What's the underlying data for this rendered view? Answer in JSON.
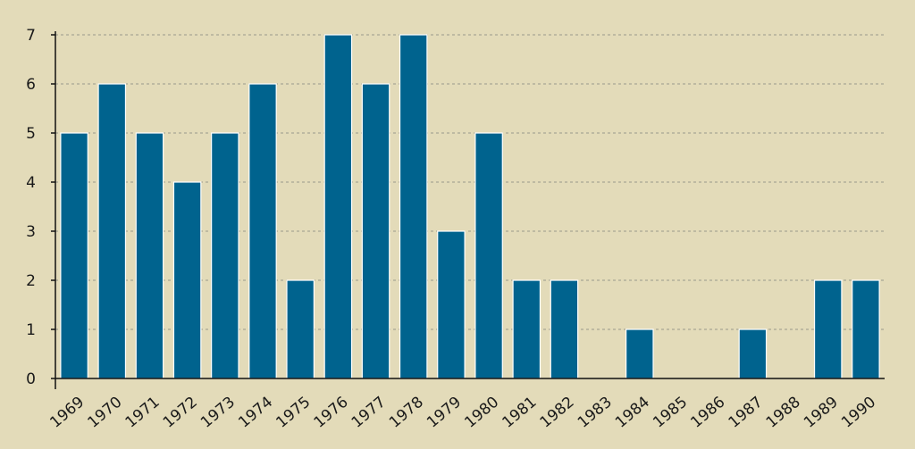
{
  "chart_data": {
    "type": "bar",
    "title": "",
    "xlabel": "",
    "ylabel": "",
    "categories": [
      "1969",
      "1970",
      "1971",
      "1972",
      "1973",
      "1974",
      "1975",
      "1976",
      "1977",
      "1978",
      "1979",
      "1980",
      "1981",
      "1982",
      "1983",
      "1984",
      "1985",
      "1986",
      "1987",
      "1988",
      "1989",
      "1990"
    ],
    "values": [
      5,
      6,
      5,
      4,
      5,
      6,
      2,
      7,
      6,
      7,
      3,
      5,
      2,
      2,
      0,
      1,
      0,
      0,
      1,
      0,
      2,
      2
    ],
    "ylim": [
      0,
      7
    ],
    "yticks": [
      0,
      1,
      2,
      3,
      4,
      5,
      6,
      7
    ],
    "grid": true,
    "legend": "none",
    "colors": {
      "bar": "#00638e",
      "background": "#e3dbb9",
      "grid": "#9a9a8c",
      "axis": "#111111"
    }
  }
}
